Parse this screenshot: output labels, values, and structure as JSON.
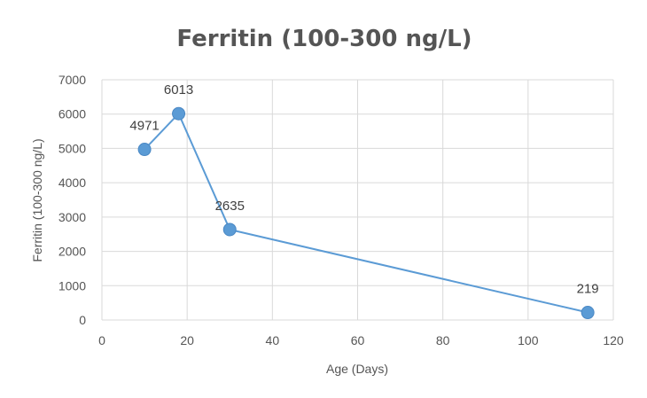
{
  "chart_data": {
    "type": "scatter",
    "title": "Ferritin (100-300 ng/L)",
    "xlabel": "Age (Days)",
    "ylabel": "Ferritin (100-300 ng/L)",
    "xlim": [
      0,
      120
    ],
    "ylim": [
      0,
      7000
    ],
    "xticks": [
      0,
      20,
      40,
      60,
      80,
      100,
      120
    ],
    "yticks": [
      0,
      1000,
      2000,
      3000,
      4000,
      5000,
      6000,
      7000
    ],
    "grid": true,
    "legend": "none",
    "series": [
      {
        "x": [
          10,
          18,
          30,
          114
        ],
        "y": [
          4971,
          6013,
          2635,
          219
        ],
        "labels": [
          "4971",
          "6013",
          "2635",
          "219"
        ],
        "color": "#5b9bd5",
        "line": true
      }
    ]
  }
}
